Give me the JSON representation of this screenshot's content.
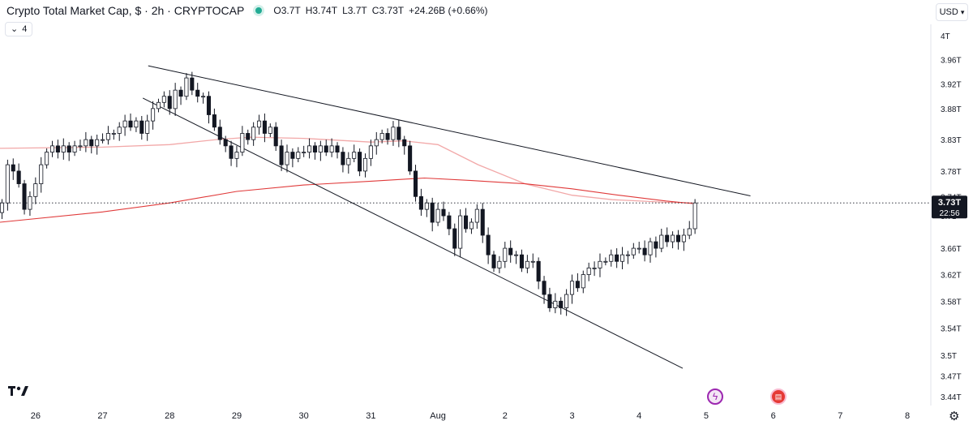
{
  "header": {
    "title": "Crypto Total Market Cap, $ · 2h · CRYPTOCAP",
    "ohlc": [
      {
        "k": "O",
        "v": "3.7T"
      },
      {
        "k": "H",
        "v": "3.74T"
      },
      {
        "k": "L",
        "v": "3.7T"
      },
      {
        "k": "C",
        "v": "3.73T"
      }
    ],
    "change": "+24.26B (+0.66%)",
    "indicator_toggle": "4",
    "currency": "USD"
  },
  "colors": {
    "up": "#ffffff",
    "down": "#131722",
    "wick": "#131722",
    "ma_fast": "#f2a8a8",
    "ma_slow": "#e03a3a",
    "trendline": "#131722",
    "status_dot": "#22ab94"
  },
  "icons": {
    "logo": "tradingview-logo-icon",
    "events": [
      "flash-event-icon",
      "us-flag-event-icon"
    ],
    "settings": "gear-icon"
  },
  "chart_data": {
    "type": "candlestick",
    "title": "Crypto Total Market Cap, $ · 2h · CRYPTOCAP",
    "timeframe": "2h",
    "currency": "USD",
    "y_scale": "log",
    "ylim": [
      3.43,
      4.02
    ],
    "y_unit": "T",
    "y_ticks": [
      {
        "value": 4.0,
        "label": "4T"
      },
      {
        "value": 3.96,
        "label": "3.96T"
      },
      {
        "value": 3.92,
        "label": "3.92T"
      },
      {
        "value": 3.88,
        "label": "3.88T"
      },
      {
        "value": 3.83,
        "label": "3.83T"
      },
      {
        "value": 3.78,
        "label": "3.78T"
      },
      {
        "value": 3.74,
        "label": "3.74T"
      },
      {
        "value": 3.71,
        "label": "3.71"
      },
      {
        "value": 3.66,
        "label": "3.66T"
      },
      {
        "value": 3.62,
        "label": "3.62T"
      },
      {
        "value": 3.58,
        "label": "3.58T"
      },
      {
        "value": 3.54,
        "label": "3.54T"
      },
      {
        "value": 3.5,
        "label": "3.5T"
      },
      {
        "value": 3.47,
        "label": "3.47T"
      },
      {
        "value": 3.44,
        "label": "3.44T"
      }
    ],
    "x_ticks": [
      {
        "day": 0,
        "label": "26"
      },
      {
        "day": 1,
        "label": "27"
      },
      {
        "day": 2,
        "label": "28"
      },
      {
        "day": 3,
        "label": "29"
      },
      {
        "day": 4,
        "label": "30"
      },
      {
        "day": 5,
        "label": "31"
      },
      {
        "day": 6,
        "label": "Aug"
      },
      {
        "day": 7,
        "label": "2"
      },
      {
        "day": 8,
        "label": "3"
      },
      {
        "day": 9,
        "label": "4"
      },
      {
        "day": 10,
        "label": "5"
      },
      {
        "day": 11,
        "label": "6"
      },
      {
        "day": 12,
        "label": "7"
      },
      {
        "day": 13,
        "label": "8"
      }
    ],
    "x_range_days": [
      -0.53,
      13.35
    ],
    "bars_per_day": 12,
    "first_bar_day": -0.5,
    "closes": [
      3.73,
      3.79,
      3.78,
      3.76,
      3.72,
      3.74,
      3.76,
      3.79,
      3.81,
      3.82,
      3.81,
      3.82,
      3.81,
      3.82,
      3.82,
      3.83,
      3.82,
      3.83,
      3.83,
      3.84,
      3.84,
      3.85,
      3.86,
      3.85,
      3.86,
      3.84,
      3.86,
      3.88,
      3.89,
      3.9,
      3.88,
      3.91,
      3.9,
      3.93,
      3.91,
      3.9,
      3.9,
      3.87,
      3.85,
      3.83,
      3.82,
      3.8,
      3.81,
      3.84,
      3.83,
      3.85,
      3.86,
      3.84,
      3.85,
      3.82,
      3.79,
      3.81,
      3.8,
      3.81,
      3.81,
      3.82,
      3.81,
      3.82,
      3.81,
      3.82,
      3.81,
      3.79,
      3.8,
      3.81,
      3.78,
      3.8,
      3.82,
      3.83,
      3.84,
      3.83,
      3.85,
      3.83,
      3.82,
      3.78,
      3.74,
      3.72,
      3.73,
      3.7,
      3.72,
      3.71,
      3.69,
      3.66,
      3.71,
      3.69,
      3.7,
      3.72,
      3.68,
      3.65,
      3.63,
      3.64,
      3.66,
      3.65,
      3.65,
      3.63,
      3.64,
      3.64,
      3.61,
      3.59,
      3.57,
      3.58,
      3.57,
      3.59,
      3.61,
      3.6,
      3.62,
      3.63,
      3.63,
      3.64,
      3.64,
      3.65,
      3.64,
      3.65,
      3.65,
      3.66,
      3.66,
      3.65,
      3.67,
      3.66,
      3.68,
      3.67,
      3.68,
      3.67,
      3.68,
      3.69,
      3.73
    ],
    "ma_fast": [
      {
        "day": -0.53,
        "value": 3.816
      },
      {
        "day": 1,
        "value": 3.818
      },
      {
        "day": 2,
        "value": 3.822
      },
      {
        "day": 2.7,
        "value": 3.83
      },
      {
        "day": 3.2,
        "value": 3.834
      },
      {
        "day": 4,
        "value": 3.832
      },
      {
        "day": 5,
        "value": 3.826
      },
      {
        "day": 5.5,
        "value": 3.828
      },
      {
        "day": 6,
        "value": 3.822
      },
      {
        "day": 6.6,
        "value": 3.79
      },
      {
        "day": 7.3,
        "value": 3.76
      },
      {
        "day": 8,
        "value": 3.742
      },
      {
        "day": 8.6,
        "value": 3.735
      },
      {
        "day": 9.4,
        "value": 3.731
      },
      {
        "day": 9.8,
        "value": 3.73
      }
    ],
    "ma_slow": [
      {
        "day": -0.53,
        "value": 3.7
      },
      {
        "day": 1,
        "value": 3.716
      },
      {
        "day": 2,
        "value": 3.73
      },
      {
        "day": 3,
        "value": 3.748
      },
      {
        "day": 4,
        "value": 3.758
      },
      {
        "day": 5,
        "value": 3.764
      },
      {
        "day": 5.8,
        "value": 3.769
      },
      {
        "day": 6.5,
        "value": 3.765
      },
      {
        "day": 7.3,
        "value": 3.76
      },
      {
        "day": 8,
        "value": 3.752
      },
      {
        "day": 8.7,
        "value": 3.742
      },
      {
        "day": 9.4,
        "value": 3.733
      },
      {
        "day": 9.8,
        "value": 3.729
      }
    ],
    "trendlines": [
      {
        "name": "upper",
        "from": {
          "day": 1.68,
          "value": 3.95
        },
        "to": {
          "day": 10.66,
          "value": 3.741
        }
      },
      {
        "name": "lower",
        "from": {
          "day": 1.6,
          "value": 3.897
        },
        "to": {
          "day": 9.65,
          "value": 3.481
        }
      }
    ],
    "last_price": {
      "value": 3.73,
      "label": "3.73T",
      "countdown": "22:56"
    },
    "grid": false,
    "legend": "none"
  }
}
